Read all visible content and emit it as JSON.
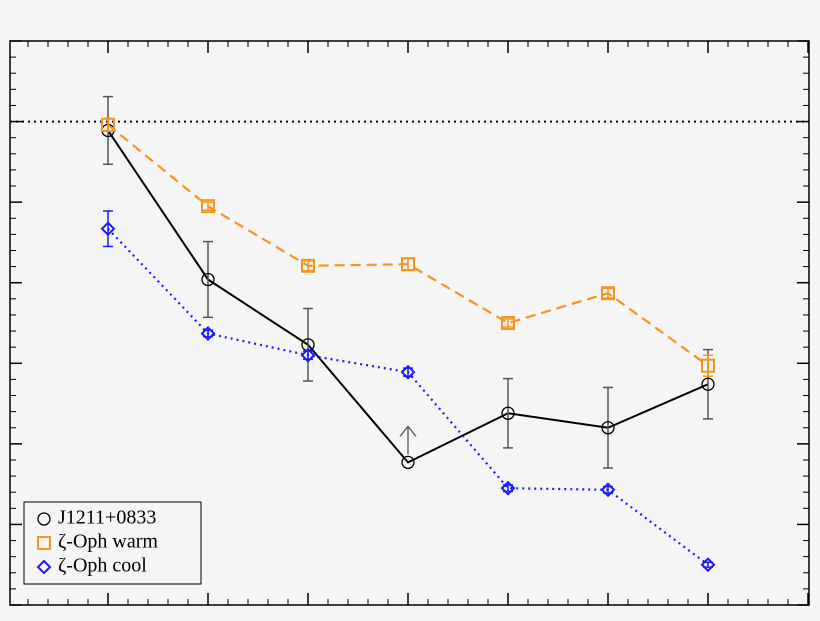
{
  "chart_data": {
    "type": "line",
    "categories": [
      null,
      null,
      null,
      null,
      null,
      null,
      null
    ],
    "ylim": [
      0,
      7
    ],
    "yticks": [
      0,
      1,
      2,
      3,
      4,
      5,
      6,
      7
    ],
    "reference_line": 6,
    "legend": "lower left",
    "series": [
      {
        "name": "J1211+0833",
        "color": "#000000",
        "marker": "circle",
        "dash": "solid",
        "values": [
          5.89,
          4.04,
          3.23,
          1.77,
          2.38,
          2.2,
          2.74
        ],
        "errors": [
          0.42,
          0.47,
          0.45,
          null,
          0.43,
          0.5,
          0.43
        ],
        "lower_limit": [
          false,
          false,
          false,
          true,
          false,
          false,
          false
        ]
      },
      {
        "name": "ζ-Oph warm",
        "color": "#f7941d",
        "marker": "square",
        "dash": "dashed",
        "values": [
          5.96,
          4.95,
          4.21,
          4.23,
          3.5,
          3.87,
          2.97
        ],
        "errors": [
          0.08,
          0.05,
          0.06,
          0.07,
          0.05,
          0.06,
          0.13
        ]
      },
      {
        "name": "ζ-Oph cool",
        "color": "#1a1aff",
        "marker": "diamond",
        "dash": "dotted",
        "values": [
          4.67,
          3.37,
          3.1,
          2.89,
          1.45,
          1.43,
          0.5
        ],
        "errors": [
          0.22,
          0.04,
          0.05,
          0.05,
          0.04,
          0.04,
          0.03
        ]
      }
    ]
  }
}
